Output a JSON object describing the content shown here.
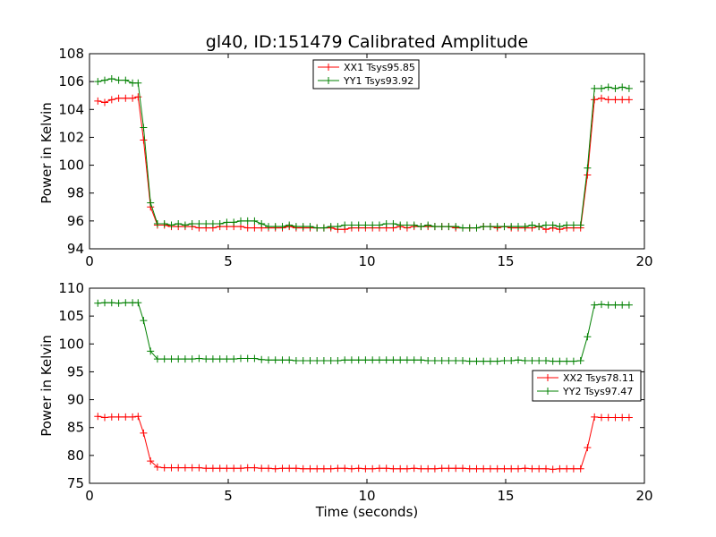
{
  "chart_data": [
    {
      "type": "line",
      "title": "gl40, ID:151479 Calibrated Amplitude",
      "xlabel": "",
      "ylabel": "Power in Kelvin",
      "xlim": [
        0,
        20
      ],
      "ylim": [
        94,
        108
      ],
      "xticks": [
        0,
        5,
        10,
        15,
        20
      ],
      "yticks": [
        94,
        96,
        98,
        100,
        102,
        104,
        106,
        108
      ],
      "legend_position": "top-center",
      "x": [
        0.3,
        0.55,
        0.8,
        1.05,
        1.3,
        1.55,
        1.75,
        1.95,
        2.2,
        2.45,
        2.7,
        2.95,
        3.2,
        3.45,
        3.7,
        3.95,
        4.2,
        4.45,
        4.7,
        4.95,
        5.2,
        5.45,
        5.7,
        5.95,
        6.2,
        6.45,
        6.7,
        6.95,
        7.2,
        7.45,
        7.7,
        7.95,
        8.2,
        8.45,
        8.7,
        8.95,
        9.2,
        9.45,
        9.7,
        9.95,
        10.2,
        10.45,
        10.7,
        10.95,
        11.2,
        11.45,
        11.7,
        11.95,
        12.2,
        12.45,
        12.7,
        12.95,
        13.2,
        13.45,
        13.7,
        13.95,
        14.2,
        14.45,
        14.7,
        14.95,
        15.2,
        15.45,
        15.7,
        15.95,
        16.2,
        16.45,
        16.7,
        16.95,
        17.2,
        17.45,
        17.7,
        17.95,
        18.2,
        18.45,
        18.7,
        18.95,
        19.2,
        19.45
      ],
      "series": [
        {
          "name": "XX1 Tsys95.85",
          "color": "#ff0000",
          "values": [
            104.6,
            104.5,
            104.7,
            104.8,
            104.8,
            104.8,
            104.9,
            101.8,
            97.0,
            95.7,
            95.7,
            95.6,
            95.6,
            95.6,
            95.6,
            95.5,
            95.5,
            95.5,
            95.6,
            95.6,
            95.6,
            95.6,
            95.5,
            95.5,
            95.5,
            95.5,
            95.5,
            95.5,
            95.6,
            95.5,
            95.5,
            95.5,
            95.5,
            95.5,
            95.5,
            95.4,
            95.4,
            95.5,
            95.5,
            95.5,
            95.5,
            95.5,
            95.5,
            95.5,
            95.6,
            95.5,
            95.6,
            95.6,
            95.6,
            95.6,
            95.6,
            95.6,
            95.5,
            95.5,
            95.5,
            95.5,
            95.6,
            95.6,
            95.5,
            95.6,
            95.5,
            95.5,
            95.5,
            95.5,
            95.6,
            95.4,
            95.5,
            95.4,
            95.5,
            95.5,
            95.5,
            99.3,
            104.7,
            104.8,
            104.7,
            104.7,
            104.7,
            104.7
          ]
        },
        {
          "name": "YY1 Tsys93.92",
          "color": "#008000",
          "values": [
            106.0,
            106.1,
            106.2,
            106.1,
            106.1,
            105.9,
            105.9,
            102.7,
            97.3,
            95.8,
            95.8,
            95.7,
            95.8,
            95.7,
            95.8,
            95.8,
            95.8,
            95.8,
            95.8,
            95.9,
            95.9,
            96.0,
            96.0,
            96.0,
            95.8,
            95.6,
            95.6,
            95.6,
            95.7,
            95.6,
            95.6,
            95.6,
            95.5,
            95.5,
            95.6,
            95.6,
            95.7,
            95.7,
            95.7,
            95.7,
            95.7,
            95.7,
            95.8,
            95.8,
            95.7,
            95.7,
            95.7,
            95.6,
            95.7,
            95.6,
            95.6,
            95.6,
            95.6,
            95.5,
            95.5,
            95.5,
            95.6,
            95.6,
            95.6,
            95.6,
            95.6,
            95.6,
            95.6,
            95.7,
            95.6,
            95.7,
            95.7,
            95.6,
            95.7,
            95.7,
            95.7,
            99.8,
            105.5,
            105.5,
            105.6,
            105.5,
            105.6,
            105.5
          ]
        }
      ]
    },
    {
      "type": "line",
      "title": "",
      "xlabel": "Time (seconds)",
      "ylabel": "Power in Kelvin",
      "xlim": [
        0,
        20
      ],
      "ylim": [
        75,
        110
      ],
      "xticks": [
        0,
        5,
        10,
        15,
        20
      ],
      "yticks": [
        75,
        80,
        85,
        90,
        95,
        100,
        105,
        110
      ],
      "legend_position": "center-right",
      "x": [
        0.3,
        0.55,
        0.8,
        1.05,
        1.3,
        1.55,
        1.75,
        1.95,
        2.2,
        2.45,
        2.7,
        2.95,
        3.2,
        3.45,
        3.7,
        3.95,
        4.2,
        4.45,
        4.7,
        4.95,
        5.2,
        5.45,
        5.7,
        5.95,
        6.2,
        6.45,
        6.7,
        6.95,
        7.2,
        7.45,
        7.7,
        7.95,
        8.2,
        8.45,
        8.7,
        8.95,
        9.2,
        9.45,
        9.7,
        9.95,
        10.2,
        10.45,
        10.7,
        10.95,
        11.2,
        11.45,
        11.7,
        11.95,
        12.2,
        12.45,
        12.7,
        12.95,
        13.2,
        13.45,
        13.7,
        13.95,
        14.2,
        14.45,
        14.7,
        14.95,
        15.2,
        15.45,
        15.7,
        15.95,
        16.2,
        16.45,
        16.7,
        16.95,
        17.2,
        17.45,
        17.7,
        17.95,
        18.2,
        18.45,
        18.7,
        18.95,
        19.2,
        19.45
      ],
      "series": [
        {
          "name": "XX2 Tsys78.11",
          "color": "#ff0000",
          "values": [
            87.0,
            86.8,
            86.9,
            86.9,
            86.9,
            86.9,
            87.0,
            84.0,
            79.0,
            77.9,
            77.8,
            77.8,
            77.8,
            77.8,
            77.8,
            77.8,
            77.7,
            77.7,
            77.7,
            77.7,
            77.7,
            77.7,
            77.8,
            77.8,
            77.7,
            77.7,
            77.6,
            77.7,
            77.7,
            77.7,
            77.6,
            77.6,
            77.6,
            77.6,
            77.6,
            77.7,
            77.7,
            77.6,
            77.7,
            77.6,
            77.6,
            77.7,
            77.7,
            77.6,
            77.6,
            77.6,
            77.7,
            77.6,
            77.6,
            77.6,
            77.7,
            77.7,
            77.7,
            77.7,
            77.6,
            77.6,
            77.6,
            77.6,
            77.6,
            77.6,
            77.6,
            77.6,
            77.7,
            77.6,
            77.6,
            77.6,
            77.5,
            77.6,
            77.6,
            77.6,
            77.6,
            81.4,
            86.9,
            86.8,
            86.8,
            86.8,
            86.8,
            86.8
          ]
        },
        {
          "name": "YY2 Tsys97.47",
          "color": "#008000",
          "values": [
            107.3,
            107.4,
            107.4,
            107.3,
            107.4,
            107.4,
            107.4,
            104.2,
            98.7,
            97.3,
            97.3,
            97.3,
            97.3,
            97.3,
            97.3,
            97.4,
            97.3,
            97.3,
            97.3,
            97.3,
            97.3,
            97.4,
            97.4,
            97.4,
            97.2,
            97.1,
            97.1,
            97.1,
            97.1,
            97.0,
            97.0,
            97.0,
            97.0,
            97.0,
            97.0,
            97.0,
            97.1,
            97.1,
            97.1,
            97.1,
            97.1,
            97.1,
            97.1,
            97.1,
            97.1,
            97.1,
            97.1,
            97.1,
            97.0,
            97.0,
            97.0,
            97.0,
            97.0,
            97.0,
            96.9,
            96.9,
            96.9,
            96.9,
            96.9,
            97.0,
            97.0,
            97.1,
            97.0,
            97.0,
            97.0,
            97.0,
            96.9,
            96.9,
            96.9,
            96.9,
            97.0,
            101.3,
            107.0,
            107.1,
            107.0,
            107.0,
            107.0,
            107.0
          ]
        }
      ]
    }
  ]
}
